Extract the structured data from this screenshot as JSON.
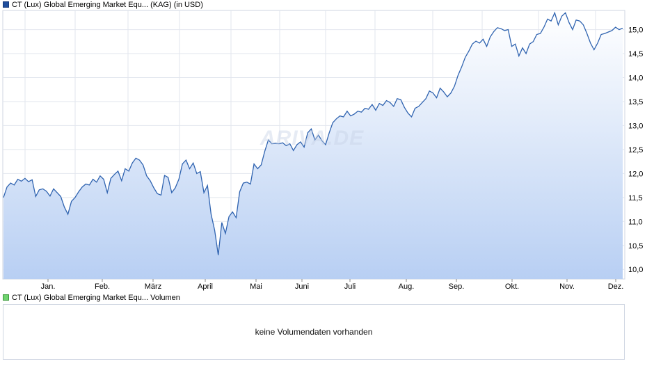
{
  "legend": {
    "price_label": "CT (Lux) Global Emerging Market Equ... (KAG) (in USD)",
    "price_color": "#1f4e9c",
    "volume_label": "CT (Lux) Global Emerging Market Equ... Volumen",
    "volume_color": "#4caf50"
  },
  "volume": {
    "message": "keine Volumendaten vorhanden"
  },
  "chart_data": {
    "type": "area",
    "title": "",
    "xlabel": "",
    "ylabel": "",
    "ylim": [
      9.8,
      15.4
    ],
    "y_ticks": [
      "10,0",
      "10,5",
      "11,0",
      "11,5",
      "12,0",
      "12,5",
      "13,0",
      "13,5",
      "14,0",
      "14,5",
      "15,0"
    ],
    "x_ticks": [
      "Jan.",
      "Feb.",
      "März",
      "April",
      "Mai",
      "Juni",
      "Juli",
      "Aug.",
      "Sep.",
      "Okt.",
      "Nov.",
      "Dez."
    ],
    "grid": true,
    "line_color": "#2f63b0",
    "series": [
      {
        "values": [
          11.5,
          11.72,
          11.8,
          11.76,
          11.88,
          11.84,
          11.9,
          11.83,
          11.87,
          11.52,
          11.66,
          11.68,
          11.63,
          11.53,
          11.68,
          11.6,
          11.52,
          11.3,
          11.15,
          11.42,
          11.5,
          11.62,
          11.72,
          11.78,
          11.76,
          11.88,
          11.82,
          11.95,
          11.88,
          11.6,
          11.9,
          11.98,
          12.05,
          11.85,
          12.1,
          12.05,
          12.22,
          12.32,
          12.28,
          12.18,
          11.95,
          11.85,
          11.7,
          11.58,
          11.55,
          11.96,
          11.92,
          11.6,
          11.7,
          11.88,
          12.2,
          12.28,
          12.1,
          12.22,
          12.0,
          12.04,
          11.6,
          11.75,
          11.15,
          10.82,
          10.3,
          10.98,
          10.75,
          11.1,
          11.2,
          11.08,
          11.62,
          11.8,
          11.82,
          11.78,
          12.2,
          12.1,
          12.18,
          12.46,
          12.7,
          12.62,
          12.63,
          12.62,
          12.64,
          12.58,
          12.62,
          12.48,
          12.6,
          12.66,
          12.55,
          12.85,
          12.93,
          12.7,
          12.8,
          12.68,
          12.6,
          12.85,
          13.06,
          13.14,
          13.2,
          13.18,
          13.3,
          13.2,
          13.24,
          13.3,
          13.28,
          13.36,
          13.34,
          13.44,
          13.32,
          13.46,
          13.42,
          13.52,
          13.48,
          13.4,
          13.56,
          13.54,
          13.38,
          13.26,
          13.18,
          13.36,
          13.4,
          13.48,
          13.56,
          13.72,
          13.68,
          13.58,
          13.78,
          13.7,
          13.6,
          13.68,
          13.82,
          14.05,
          14.22,
          14.42,
          14.55,
          14.7,
          14.76,
          14.72,
          14.8,
          14.65,
          14.85,
          14.96,
          15.04,
          15.02,
          14.98,
          15.0,
          14.65,
          14.7,
          14.45,
          14.62,
          14.5,
          14.7,
          14.75,
          14.9,
          14.92,
          15.05,
          15.22,
          15.18,
          15.35,
          15.1,
          15.28,
          15.35,
          15.15,
          15.0,
          15.2,
          15.18,
          15.1,
          14.92,
          14.72,
          14.58,
          14.72,
          14.9,
          14.92,
          14.95,
          14.98,
          15.05,
          15.0,
          15.03
        ]
      }
    ]
  }
}
